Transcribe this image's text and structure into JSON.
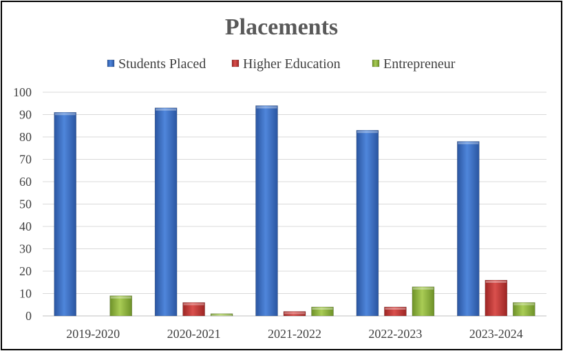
{
  "chart_data": {
    "type": "bar",
    "title": "Placements",
    "categories": [
      "2019-2020",
      "2020-2021",
      "2021-2022",
      "2022-2023",
      "2023-2024"
    ],
    "series": [
      {
        "name": "Students Placed",
        "values": [
          91,
          93,
          94,
          83,
          78
        ],
        "color": "#3b6fc4"
      },
      {
        "name": "Higher Education",
        "values": [
          0,
          6,
          2,
          4,
          16
        ],
        "color": "#c23a38"
      },
      {
        "name": "Entrepreneur",
        "values": [
          9,
          1,
          4,
          13,
          6
        ],
        "color": "#8fb63d"
      }
    ],
    "ylim": [
      0,
      100
    ],
    "yticks": [
      0,
      10,
      20,
      30,
      40,
      50,
      60,
      70,
      80,
      90,
      100
    ],
    "grid": true,
    "legend": "top"
  }
}
